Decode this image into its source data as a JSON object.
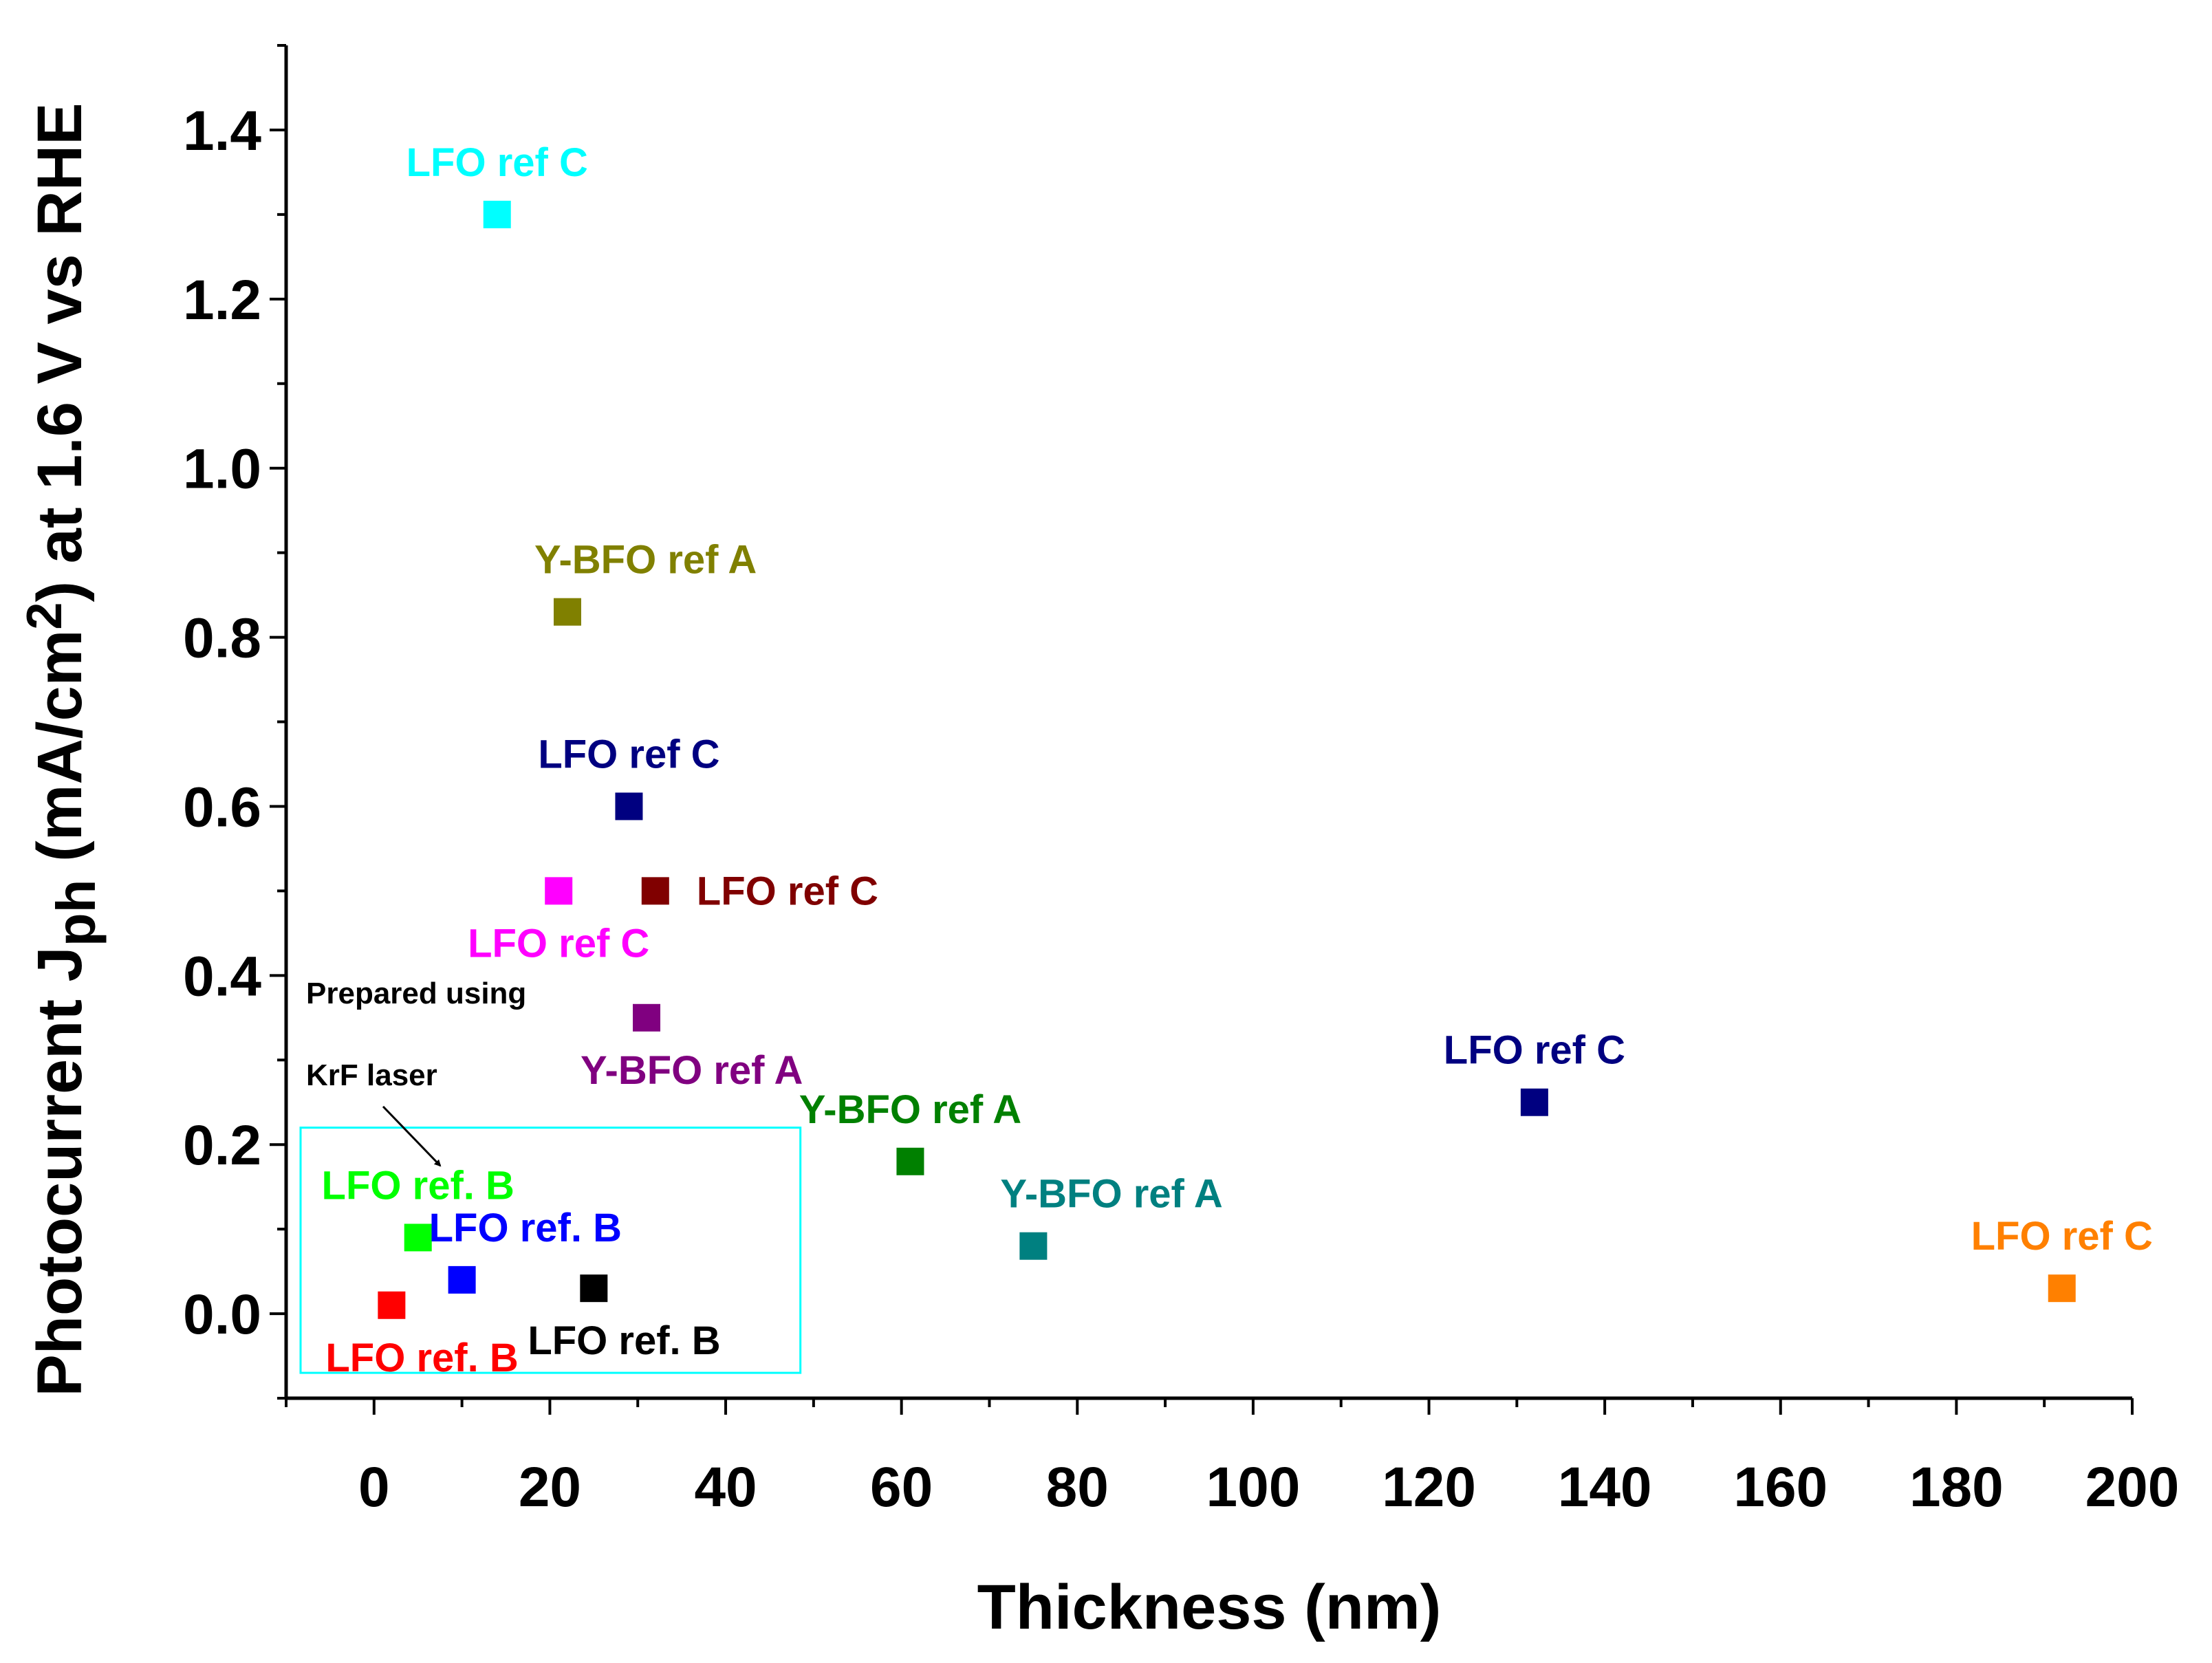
{
  "chart_data": {
    "type": "scatter",
    "title": "",
    "xlabel": "Thickness (nm)",
    "ylabel_parts": {
      "prefix": "Photocurrent J",
      "subscript": "ph",
      "middle": " (mA/cm",
      "superscript": "2",
      "suffix": ") at 1.6 V vs RHE"
    },
    "xlim": [
      -10,
      200
    ],
    "ylim": [
      -0.1,
      1.5
    ],
    "xticks": [
      0,
      20,
      40,
      60,
      80,
      100,
      120,
      140,
      160,
      180,
      200
    ],
    "xtick_labels": [
      "0",
      "20",
      "40",
      "60",
      "80",
      "100",
      "120",
      "140",
      "160",
      "180",
      "200"
    ],
    "yticks": [
      0.0,
      0.2,
      0.4,
      0.6,
      0.8,
      1.0,
      1.2,
      1.4
    ],
    "ytick_labels": [
      "0.0",
      "0.2",
      "0.4",
      "0.6",
      "0.8",
      "1.0",
      "1.2",
      "1.4"
    ],
    "grid": false,
    "points": [
      {
        "x": 2,
        "y": 0.01,
        "label": "LFO ref. B",
        "color": "#ff0000",
        "label_pos": "below-right"
      },
      {
        "x": 5,
        "y": 0.09,
        "label": "LFO ref. B",
        "color": "#00ff00",
        "label_pos": "above"
      },
      {
        "x": 10,
        "y": 0.04,
        "label": "LFO ref. B",
        "color": "#0000ff",
        "label_pos": "above-right"
      },
      {
        "x": 25,
        "y": 0.03,
        "label": "LFO ref. B",
        "color": "#000000",
        "label_pos": "below-right"
      },
      {
        "x": 14,
        "y": 1.3,
        "label": "LFO ref C",
        "color": "#00ffff",
        "label_pos": "above"
      },
      {
        "x": 22,
        "y": 0.83,
        "label": "Y-BFO ref A",
        "color": "#808000",
        "label_pos": "above-right"
      },
      {
        "x": 29,
        "y": 0.6,
        "label": "LFO ref C",
        "color": "#000080",
        "label_pos": "above"
      },
      {
        "x": 21,
        "y": 0.5,
        "label": "LFO ref C",
        "color": "#ff00ff",
        "label_pos": "below"
      },
      {
        "x": 32,
        "y": 0.5,
        "label": "LFO ref C",
        "color": "#800000",
        "label_pos": "right"
      },
      {
        "x": 31,
        "y": 0.35,
        "label": "Y-BFO ref A",
        "color": "#800080",
        "label_pos": "below-right"
      },
      {
        "x": 61,
        "y": 0.18,
        "label": "Y-BFO ref A",
        "color": "#008000",
        "label_pos": "above"
      },
      {
        "x": 75,
        "y": 0.08,
        "label": "Y-BFO ref A",
        "color": "#008080",
        "label_pos": "above-right"
      },
      {
        "x": 132,
        "y": 0.25,
        "label": "LFO ref C",
        "color": "#000080",
        "label_pos": "above"
      },
      {
        "x": 192,
        "y": 0.03,
        "label": "LFO ref C",
        "color": "#ff8000",
        "label_pos": "above"
      }
    ],
    "annotations": {
      "note_line1": "Prepared using",
      "note_line2": "KrF laser",
      "box_color": "#00ffff"
    }
  }
}
